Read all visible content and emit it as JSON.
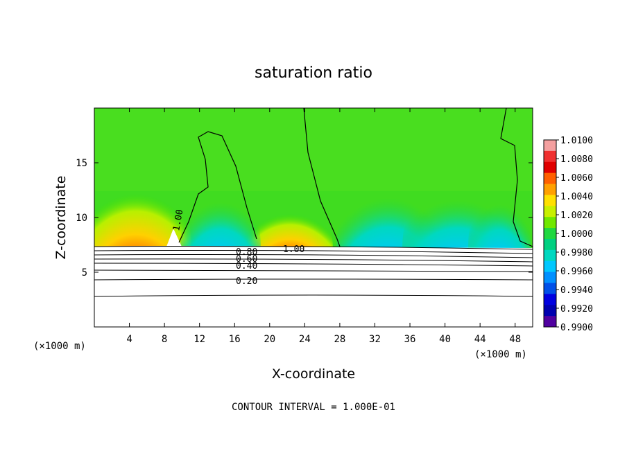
{
  "chart_data": {
    "type": "heatmap",
    "title": "saturation ratio",
    "xlabel": "X-coordinate",
    "ylabel": "Z-coordinate",
    "x_unit": "(×1000 m)",
    "y_unit": "(×1000 m)",
    "xlim": [
      0,
      50
    ],
    "ylim": [
      0,
      20
    ],
    "x_ticks": [
      4,
      8,
      12,
      16,
      20,
      24,
      28,
      32,
      36,
      40,
      44,
      48
    ],
    "y_ticks": [
      5,
      10,
      15
    ],
    "colorbar": {
      "ticks": [
        "1.0100",
        "1.0080",
        "1.0060",
        "1.0040",
        "1.0020",
        "1.0000",
        "0.9980",
        "0.9960",
        "0.9940",
        "0.9920",
        "0.9900"
      ],
      "colors": [
        "#f4a0a0",
        "#f03030",
        "#e00000",
        "#ff6000",
        "#ffa000",
        "#ffe000",
        "#c8f000",
        "#70e800",
        "#20d840",
        "#00d080",
        "#00d8c0",
        "#00c8ff",
        "#0090ff",
        "#0050e8",
        "#0000e0",
        "#0000b0",
        "#5000a0"
      ]
    },
    "contour_lines": [
      {
        "label": "1.00",
        "position": "near x=9 km, z≈9 km"
      },
      {
        "label": "1.00",
        "position": "near x=23 km, z≈7 km"
      },
      {
        "label": "0.80",
        "position": "z≈7 km"
      },
      {
        "label": "0.60",
        "position": "z≈6.5 km"
      },
      {
        "label": "0.40",
        "position": "z≈5.5 km"
      },
      {
        "label": "0.20",
        "position": "z≈4.5 km"
      }
    ],
    "footer": "CONTOUR INTERVAL = 1.000E-01"
  }
}
